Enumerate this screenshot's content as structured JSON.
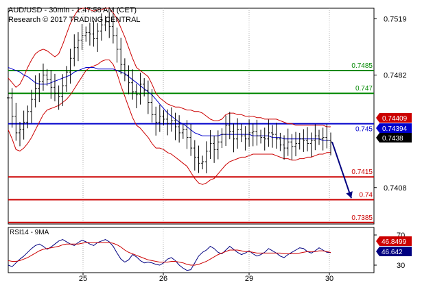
{
  "header": {
    "title": "AUD/USD - 30min - 1:47:58 AM (CET)",
    "research": "Research © 2017 TRADING CENTRAL"
  },
  "colors": {
    "price": "#000000",
    "bollinger": "#cc0000",
    "moving_average": "#0000cc",
    "resistance": "#008800",
    "support": "#cc0000",
    "pivot": "#0000cc",
    "forecast_arrow": "#000080",
    "rsi_line": "#000080",
    "rsi_ma": "#cc0000",
    "tag_red": "#cc0000",
    "tag_blue": "#0000cc",
    "tag_black": "#000000"
  },
  "chart_data": [
    {
      "type": "line",
      "panel": "price",
      "title": "AUD/USD - 30min - 1:47:58 AM (CET)",
      "ylim": [
        0.7384,
        0.7526
      ],
      "y_ticks": [
        0.7519,
        0.7482,
        0.7408
      ],
      "x_ticks": [
        "25",
        "26",
        "29",
        "30"
      ],
      "levels": [
        {
          "value": 0.7485,
          "label": "0.7485",
          "kind": "resistance",
          "color": "#008800"
        },
        {
          "value": 0.747,
          "label": "0.747",
          "kind": "resistance",
          "color": "#008800"
        },
        {
          "value": 0.745,
          "label": "0.745",
          "kind": "pivot",
          "color": "#0000cc"
        },
        {
          "value": 0.7415,
          "label": "0.7415",
          "kind": "support",
          "color": "#cc0000"
        },
        {
          "value": 0.74,
          "label": "0.74",
          "kind": "support",
          "color": "#cc0000"
        },
        {
          "value": 0.7385,
          "label": "0.7385",
          "kind": "support",
          "color": "#cc0000"
        }
      ],
      "last_values": [
        {
          "label": "0.74409",
          "color": "#cc0000",
          "value": 0.74409
        },
        {
          "label": "0.74394",
          "color": "#0000cc",
          "value": 0.74394
        },
        {
          "label": "0.7438",
          "color": "#000000",
          "value": 0.7438
        }
      ],
      "forecast": {
        "from": 0.7438,
        "to": 0.7401
      },
      "series": [
        {
          "kind": "price",
          "values": [
            0.7467,
            0.7455,
            0.7444,
            0.7446,
            0.7451,
            0.7458,
            0.7466,
            0.7473,
            0.7478,
            0.7482,
            0.7479,
            0.7474,
            0.747,
            0.7468,
            0.7475,
            0.7484,
            0.7493,
            0.75,
            0.7505,
            0.7508,
            0.751,
            0.7509,
            0.7506,
            0.7511,
            0.7515,
            0.7517,
            0.7514,
            0.7508,
            0.7499,
            0.7489,
            0.7482,
            0.7477,
            0.7471,
            0.7469,
            0.7476,
            0.7472,
            0.7464,
            0.7456,
            0.7451,
            0.7455,
            0.7453,
            0.745,
            0.7452,
            0.7448,
            0.7444,
            0.7446,
            0.7441,
            0.7434,
            0.7428,
            0.7424,
            0.7425,
            0.7432,
            0.7437,
            0.7433,
            0.7438,
            0.7443,
            0.7449,
            0.7445,
            0.744,
            0.7446,
            0.7442,
            0.744,
            0.7444,
            0.7445,
            0.7442,
            0.7441,
            0.744,
            0.7444,
            0.7443,
            0.744,
            0.7436,
            0.7434,
            0.7438,
            0.7435,
            0.7437,
            0.744,
            0.7439,
            0.7437,
            0.7439,
            0.7442,
            0.744,
            0.7441,
            0.7439,
            0.7438
          ]
        },
        {
          "kind": "bollinger_upper",
          "values": [
            0.748,
            0.7477,
            0.7474,
            0.7476,
            0.7481,
            0.7487,
            0.7492,
            0.7496,
            0.7498,
            0.7499,
            0.7498,
            0.7496,
            0.7494,
            0.7496,
            0.7502,
            0.7509,
            0.7516,
            0.7521,
            0.7525,
            0.7526,
            0.7526,
            0.7525,
            0.7524,
            0.7525,
            0.7525,
            0.7526,
            0.7526,
            0.7523,
            0.7519,
            0.7513,
            0.7507,
            0.75,
            0.7493,
            0.7487,
            0.7485,
            0.7483,
            0.7481,
            0.7476,
            0.747,
            0.7467,
            0.7465,
            0.7463,
            0.7462,
            0.7461,
            0.7461,
            0.746,
            0.7459,
            0.7459,
            0.7458,
            0.7458,
            0.7457,
            0.7455,
            0.7453,
            0.7452,
            0.7452,
            0.7453,
            0.7456,
            0.7457,
            0.7457,
            0.7456,
            0.7456,
            0.7455,
            0.7455,
            0.7455,
            0.7454,
            0.7454,
            0.7453,
            0.7453,
            0.7453,
            0.7453,
            0.7452,
            0.7451,
            0.745,
            0.745,
            0.7449,
            0.7449,
            0.7449,
            0.7449,
            0.7449,
            0.7449,
            0.7449,
            0.7449,
            0.7448,
            0.7448
          ]
        },
        {
          "kind": "bollinger_lower",
          "values": [
            0.7446,
            0.744,
            0.7433,
            0.7432,
            0.7434,
            0.7437,
            0.7441,
            0.7446,
            0.7451,
            0.7456,
            0.7459,
            0.746,
            0.7461,
            0.7462,
            0.7464,
            0.7466,
            0.7469,
            0.7473,
            0.7477,
            0.7481,
            0.7485,
            0.7487,
            0.7488,
            0.7489,
            0.7491,
            0.7492,
            0.7492,
            0.7489,
            0.7483,
            0.7475,
            0.7468,
            0.7461,
            0.7454,
            0.7449,
            0.7447,
            0.7444,
            0.7441,
            0.7437,
            0.7434,
            0.7434,
            0.7433,
            0.7431,
            0.743,
            0.7428,
            0.7426,
            0.7424,
            0.7422,
            0.7418,
            0.7414,
            0.7411,
            0.741,
            0.7411,
            0.7413,
            0.7414,
            0.7417,
            0.742,
            0.7423,
            0.7425,
            0.7426,
            0.7427,
            0.7428,
            0.7428,
            0.7429,
            0.743,
            0.743,
            0.743,
            0.743,
            0.743,
            0.743,
            0.7429,
            0.7428,
            0.7427,
            0.7427,
            0.7426,
            0.7426,
            0.7427,
            0.7427,
            0.7428,
            0.7428,
            0.7429,
            0.743,
            0.743,
            0.7431,
            0.7431
          ]
        },
        {
          "kind": "moving_average",
          "values": [
            0.7487,
            0.7486,
            0.7485,
            0.7484,
            0.7482,
            0.7481,
            0.7479,
            0.7477,
            0.7476,
            0.7476,
            0.7476,
            0.7477,
            0.7478,
            0.7479,
            0.748,
            0.7481,
            0.7482,
            0.7484,
            0.7485,
            0.7486,
            0.7487,
            0.7487,
            0.7487,
            0.7486,
            0.7486,
            0.7486,
            0.7486,
            0.7486,
            0.7485,
            0.7484,
            0.7483,
            0.7481,
            0.7479,
            0.7477,
            0.7475,
            0.7473,
            0.7471,
            0.7469,
            0.7466,
            0.7463,
            0.746,
            0.7457,
            0.7455,
            0.7453,
            0.7451,
            0.745,
            0.7448,
            0.7446,
            0.7444,
            0.7443,
            0.7442,
            0.7442,
            0.7442,
            0.7442,
            0.7442,
            0.7443,
            0.7443,
            0.7443,
            0.7443,
            0.7443,
            0.7443,
            0.7443,
            0.7443,
            0.7442,
            0.7442,
            0.7442,
            0.7442,
            0.7442,
            0.7441,
            0.7441,
            0.7441,
            0.744,
            0.744,
            0.744,
            0.744,
            0.744,
            0.744,
            0.744,
            0.744,
            0.744,
            0.744,
            0.7439,
            0.7439,
            0.7439
          ]
        }
      ]
    },
    {
      "type": "line",
      "panel": "rsi",
      "title": "RSI14 - 9MA",
      "ylim": [
        20,
        80
      ],
      "y_ticks": [
        70,
        30
      ],
      "x_ticks": [
        "25",
        "26",
        "29",
        "30"
      ],
      "last_values": [
        {
          "label": "46.8499",
          "color": "#cc0000",
          "value": 46.8499
        },
        {
          "label": "46.642",
          "color": "#000080",
          "value": 46.642
        }
      ],
      "series": [
        {
          "kind": "rsi",
          "values": [
            30,
            28,
            33,
            38,
            42,
            47,
            52,
            56,
            58,
            55,
            51,
            54,
            58,
            62,
            64,
            61,
            58,
            56,
            60,
            63,
            61,
            58,
            56,
            60,
            62,
            64,
            61,
            55,
            46,
            38,
            34,
            37,
            44,
            41,
            36,
            33,
            34,
            33,
            31,
            30,
            33,
            38,
            40,
            36,
            30,
            26,
            23,
            24,
            33,
            42,
            47,
            50,
            55,
            52,
            47,
            45,
            50,
            55,
            51,
            47,
            44,
            46,
            49,
            45,
            42,
            44,
            47,
            52,
            49,
            46,
            42,
            40,
            44,
            47,
            50,
            53,
            52,
            48,
            46,
            49,
            53,
            50,
            47,
            46.6
          ]
        },
        {
          "kind": "rsi_ma",
          "values": [
            36,
            35,
            35,
            36,
            38,
            40,
            43,
            46,
            49,
            51,
            52,
            53,
            54,
            55,
            57,
            58,
            58,
            58,
            58,
            59,
            60,
            60,
            60,
            60,
            60,
            60,
            60,
            59,
            57,
            54,
            50,
            47,
            45,
            43,
            41,
            39,
            37,
            36,
            35,
            34,
            34,
            34,
            35,
            35,
            34,
            33,
            31,
            30,
            30,
            31,
            33,
            35,
            38,
            41,
            44,
            46,
            48,
            50,
            50,
            50,
            49,
            48,
            48,
            47,
            46,
            46,
            46,
            46,
            46,
            46,
            46,
            45,
            45,
            45,
            45,
            46,
            47,
            48,
            48,
            48,
            49,
            49,
            48,
            46.8
          ]
        }
      ]
    }
  ]
}
